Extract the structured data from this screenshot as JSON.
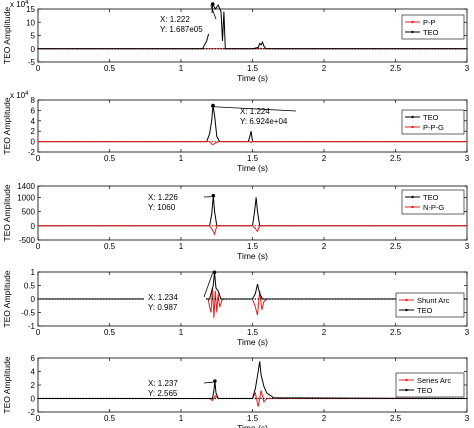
{
  "figure": {
    "colors": {
      "red": "#e02020",
      "black": "#000000",
      "axis": "#000000",
      "grid_bg": "#ffffff"
    }
  },
  "chart_data": [
    {
      "type": "line",
      "xlabel": "Time (s)",
      "ylabel": "TEO Amplitude",
      "xlim": [
        0,
        3
      ],
      "xticks": [
        0,
        0.5,
        1,
        1.5,
        2,
        2.5,
        3
      ],
      "xtick_labels": [
        "0",
        "0.5",
        "1",
        "1.5",
        "2",
        "2.5",
        "3"
      ],
      "ylim": [
        -5,
        15
      ],
      "yticks": [
        -5,
        0,
        5,
        10,
        15
      ],
      "ytick_labels": [
        "-5",
        "0",
        "5",
        "10",
        "15"
      ],
      "yexponent": "x 10^4",
      "legend": {
        "placement": "top-right",
        "entries": [
          {
            "name": "P-P",
            "color": "#e02020"
          },
          {
            "name": "TEO",
            "color": "#000000"
          }
        ]
      },
      "annotation": {
        "x_text": "X: 1.222",
        "y_text": "Y: 1.687e05",
        "x": 1.222,
        "y": 16.87
      },
      "series": [
        {
          "name": "P-P",
          "color": "#e02020",
          "x": [
            0,
            3
          ],
          "y": [
            0,
            0
          ]
        },
        {
          "name": "TEO",
          "color": "#000000",
          "x": [
            0,
            1.15,
            1.18,
            1.2,
            1.215,
            1.222,
            1.24,
            1.26,
            1.28,
            1.29,
            1.3,
            1.31,
            1.5,
            1.54,
            1.55,
            1.56,
            1.57,
            1.58,
            1.59,
            1.6,
            3
          ],
          "y": [
            0,
            0,
            3,
            7,
            12,
            16.87,
            15,
            16.5,
            14,
            3,
            14,
            0,
            0,
            0.5,
            2,
            1.5,
            2.5,
            1,
            0.3,
            0,
            0
          ]
        }
      ]
    },
    {
      "type": "line",
      "xlabel": "Time (s)",
      "ylabel": "TEO Amplitude",
      "xlim": [
        0,
        3
      ],
      "xticks": [
        0,
        0.5,
        1,
        1.5,
        2,
        2.5,
        3
      ],
      "xtick_labels": [
        "0",
        "0.5",
        "1",
        "1.5",
        "2",
        "2.5",
        "3"
      ],
      "ylim": [
        -2,
        8
      ],
      "yticks": [
        -2,
        0,
        2,
        4,
        6,
        8
      ],
      "ytick_labels": [
        "-2",
        "0",
        "2",
        "4",
        "6",
        "8"
      ],
      "yexponent": "x 10^4",
      "legend": {
        "placement": "right",
        "entries": [
          {
            "name": "TEO",
            "color": "#000000"
          },
          {
            "name": "P-P-G",
            "color": "#e02020"
          }
        ]
      },
      "annotation": {
        "x_text": "X: 1.224",
        "y_text": "Y: 6.924e+04",
        "x": 1.224,
        "y": 6.924
      },
      "series": [
        {
          "name": "TEO",
          "color": "#000000",
          "x": [
            0,
            1.18,
            1.2,
            1.215,
            1.224,
            1.235,
            1.25,
            1.27,
            1.47,
            1.48,
            1.49,
            1.5,
            3
          ],
          "y": [
            0,
            0,
            1.5,
            4,
            6.924,
            5,
            1,
            0,
            0,
            0.8,
            2,
            0,
            0
          ]
        },
        {
          "name": "P-P-G",
          "color": "#e02020",
          "x": [
            0,
            1.2,
            1.22,
            1.24,
            1.26,
            1.48,
            1.49,
            1.5,
            3
          ],
          "y": [
            0,
            0,
            -0.6,
            -0.3,
            0,
            0,
            -0.2,
            0,
            0
          ]
        }
      ]
    },
    {
      "type": "line",
      "xlabel": "Time (s)",
      "ylabel": "TEO Amplitude",
      "xlim": [
        0,
        3
      ],
      "xticks": [
        0,
        0.5,
        1,
        1.5,
        2,
        2.5,
        3
      ],
      "xtick_labels": [
        "0",
        "0.5",
        "1",
        "1.5",
        "2",
        "2.5",
        "3"
      ],
      "ylim": [
        -500,
        1400
      ],
      "yticks": [
        -500,
        0,
        500,
        1000,
        1400
      ],
      "ytick_labels": [
        "-500",
        "0",
        "500",
        "1000",
        "1400"
      ],
      "yexponent": "",
      "legend": {
        "placement": "right",
        "entries": [
          {
            "name": "TEO",
            "color": "#000000"
          },
          {
            "name": "N-P-G",
            "color": "#e02020"
          }
        ]
      },
      "annotation": {
        "x_text": "X: 1.226",
        "y_text": "Y: 1060",
        "x": 1.226,
        "y": 1060
      },
      "series": [
        {
          "name": "TEO",
          "color": "#000000",
          "x": [
            0,
            1.2,
            1.215,
            1.226,
            1.235,
            1.25,
            1.5,
            1.515,
            1.525,
            1.535,
            1.55,
            3
          ],
          "y": [
            0,
            0,
            400,
            1060,
            500,
            0,
            0,
            500,
            1000,
            500,
            0,
            0
          ]
        },
        {
          "name": "N-P-G",
          "color": "#e02020",
          "x": [
            0,
            1.2,
            1.22,
            1.235,
            1.25,
            1.5,
            1.52,
            1.535,
            1.55,
            3
          ],
          "y": [
            0,
            0,
            -150,
            -300,
            0,
            0,
            -100,
            -200,
            0,
            0
          ]
        }
      ]
    },
    {
      "type": "line",
      "xlabel": "Time (s)",
      "ylabel": "TEO Amplitude",
      "xlim": [
        0,
        3
      ],
      "xticks": [
        0,
        0.5,
        1,
        1.5,
        2,
        2.5,
        3
      ],
      "xtick_labels": [
        "0",
        "0.5",
        "1",
        "1.5",
        "2",
        "2.5",
        "3"
      ],
      "ylim": [
        -1,
        1
      ],
      "yticks": [
        -1,
        -0.5,
        0,
        0.5,
        1
      ],
      "ytick_labels": [
        "-1",
        "-0.5",
        "0",
        "0.5",
        "1"
      ],
      "yexponent": "",
      "legend": {
        "placement": "right",
        "entries": [
          {
            "name": "Shunt Arc",
            "color": "#e02020"
          },
          {
            "name": "TEO",
            "color": "#000000"
          }
        ]
      },
      "annotation": {
        "x_text": "X: 1.234",
        "y_text": "Y: 0.987",
        "x": 1.234,
        "y": 0.987
      },
      "series": [
        {
          "name": "Shunt Arc",
          "color": "#e02020",
          "x": [
            0,
            1.19,
            1.2,
            1.21,
            1.22,
            1.23,
            1.24,
            1.25,
            1.26,
            1.27,
            1.29,
            1.5,
            1.52,
            1.535,
            1.55,
            1.565,
            1.58,
            1.6,
            3
          ],
          "y": [
            0,
            0,
            -0.3,
            -0.5,
            0.4,
            -0.7,
            0.3,
            -0.5,
            0.2,
            -0.3,
            0,
            0,
            -0.3,
            -0.6,
            0.3,
            -0.4,
            -0.1,
            0,
            0
          ]
        },
        {
          "name": "TEO",
          "color": "#000000",
          "x": [
            0,
            1.2,
            1.215,
            1.225,
            1.234,
            1.245,
            1.26,
            1.28,
            1.5,
            1.52,
            1.535,
            1.55,
            1.57,
            3
          ],
          "y": [
            0,
            0,
            0.3,
            0.5,
            0.987,
            0.4,
            0.3,
            0,
            0,
            0.2,
            0.55,
            0.2,
            0,
            0
          ]
        }
      ]
    },
    {
      "type": "line",
      "xlabel": "Time (s)",
      "ylabel": "TEO Amplitude",
      "xlim": [
        0,
        3
      ],
      "xticks": [
        0,
        0.5,
        1,
        1.5,
        2,
        2.5,
        3
      ],
      "xtick_labels": [
        "0",
        "0.5",
        "1",
        "1.5",
        "2",
        "2.5",
        "3"
      ],
      "ylim": [
        -2,
        6
      ],
      "yticks": [
        -2,
        0,
        2,
        4,
        6
      ],
      "ytick_labels": [
        "-2",
        "0",
        "2",
        "4",
        "6"
      ],
      "yexponent": "",
      "legend": {
        "placement": "right",
        "entries": [
          {
            "name": "Series Arc",
            "color": "#e02020"
          },
          {
            "name": "TEO",
            "color": "#000000"
          }
        ]
      },
      "annotation": {
        "x_text": "X: 1.237",
        "y_text": "Y: 2.565",
        "x": 1.237,
        "y": 2.565
      },
      "series": [
        {
          "name": "Series Arc",
          "color": "#e02020",
          "x": [
            0,
            1.2,
            1.22,
            1.24,
            1.26,
            1.5,
            1.52,
            1.54,
            1.56,
            1.58,
            1.6,
            3
          ],
          "y": [
            0,
            0,
            -0.3,
            0.4,
            0,
            0,
            0.8,
            -1.2,
            1.2,
            -0.5,
            0,
            0
          ]
        },
        {
          "name": "TEO",
          "color": "#000000",
          "x": [
            0,
            1.22,
            1.23,
            1.237,
            1.245,
            1.26,
            1.5,
            1.52,
            1.54,
            1.55,
            1.56,
            1.58,
            1.6,
            1.65,
            3
          ],
          "y": [
            0,
            0,
            1.2,
            2.565,
            0.8,
            0,
            0,
            1.5,
            4,
            5.5,
            3.5,
            1.8,
            0.8,
            0.1,
            0
          ]
        }
      ]
    }
  ]
}
